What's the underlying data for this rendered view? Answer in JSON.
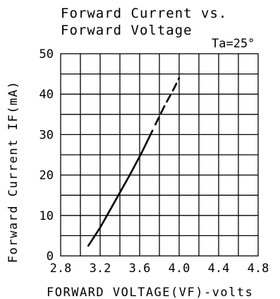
{
  "chart_data": {
    "type": "line",
    "title": "Forward Current vs.",
    "subtitle": "Forward Voltage",
    "annotation": "Ta=25°",
    "xlabel": "FORWARD VOLTAGE(VF)-volts",
    "ylabel": "Forward Current IF(mA)",
    "xlim": [
      2.8,
      4.8
    ],
    "ylim": [
      0,
      50
    ],
    "x_ticks": [
      "2.8",
      "3.2",
      "3.6",
      "4.0",
      "4.4",
      "4.8"
    ],
    "y_ticks": [
      "0",
      "10",
      "20",
      "30",
      "40",
      "50"
    ],
    "grid": true,
    "series": [
      {
        "style": "solid",
        "points": [
          [
            3.08,
            2.5
          ],
          [
            3.2,
            7
          ],
          [
            3.35,
            13.5
          ],
          [
            3.5,
            20
          ],
          [
            3.62,
            25.5
          ],
          [
            3.73,
            31
          ]
        ]
      },
      {
        "style": "dashed",
        "points": [
          [
            3.76,
            32.5
          ],
          [
            3.85,
            37
          ],
          [
            3.95,
            41.5
          ],
          [
            4.0,
            44
          ]
        ]
      }
    ]
  }
}
